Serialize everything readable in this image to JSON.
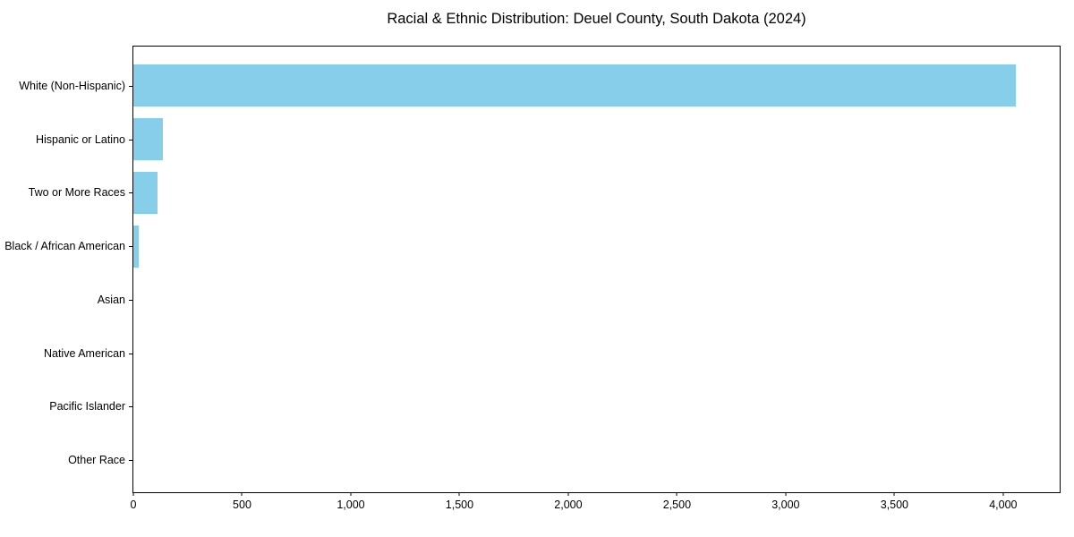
{
  "figure": {
    "background": "#ffffff"
  },
  "chart_data": {
    "type": "bar",
    "orientation": "horizontal",
    "title": "Racial & Ethnic Distribution: Deuel County, South Dakota (2024)",
    "xlabel": "",
    "ylabel": "",
    "categories": [
      "White (Non-Hispanic)",
      "Hispanic or Latino",
      "Two or More Races",
      "Black / African American",
      "Asian",
      "Native American",
      "Pacific Islander",
      "Other Race"
    ],
    "values": [
      4060,
      137,
      110,
      25,
      0,
      0,
      0,
      0
    ],
    "xlim": [
      0,
      4260
    ],
    "x_ticks": [
      0,
      500,
      1000,
      1500,
      2000,
      2500,
      3000,
      3500,
      4000
    ],
    "x_tick_labels": [
      "0",
      "500",
      "1,000",
      "1,500",
      "2,000",
      "2,500",
      "3,000",
      "3,500",
      "4,000"
    ],
    "bar_color": "#87ceeb",
    "axis_color": "#000000",
    "text_color": "#000000",
    "grid": false,
    "legend": false
  }
}
